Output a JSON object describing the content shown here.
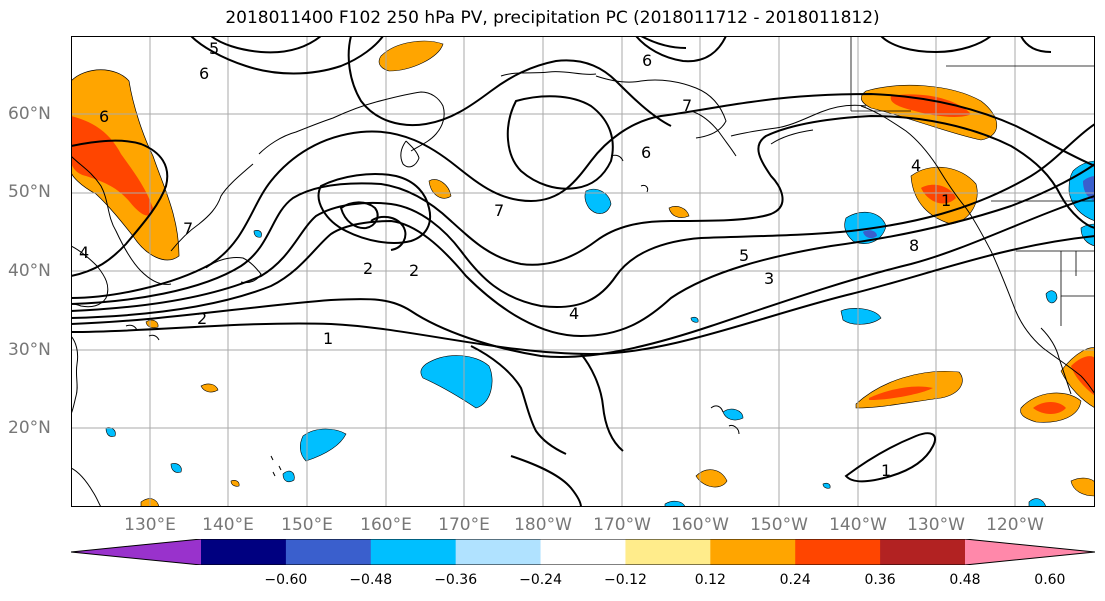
{
  "title": "2018011400 F102 250 hPa PV, precipitation PC (2018011712 - 2018011812)",
  "lat_labels": [
    "60°N",
    "50°N",
    "40°N",
    "30°N",
    "20°N"
  ],
  "lon_labels": [
    "130°E",
    "140°E",
    "150°E",
    "160°E",
    "170°E",
    "180°W",
    "170°W",
    "160°W",
    "150°W",
    "140°W",
    "130°W",
    "120°W"
  ],
  "colorbar": {
    "ticks": [
      "−0.60",
      "−0.48",
      "−0.36",
      "−0.24",
      "−0.12",
      "0.12",
      "0.24",
      "0.36",
      "0.48",
      "0.60"
    ],
    "colors": [
      "#9932cc",
      "#000080",
      "#3a5fcd",
      "#00bfff",
      "#b0e2ff",
      "#ffffff",
      "#ffec8b",
      "#ffa500",
      "#ff4500",
      "#b22222",
      "#ff88aa"
    ]
  },
  "pv_contour_labels": [
    "5",
    "6",
    "6",
    "6",
    "6",
    "7",
    "7",
    "7",
    "4",
    "2",
    "2",
    "1",
    "2",
    "4",
    "4",
    "5",
    "3",
    "8",
    "1",
    "1"
  ]
}
